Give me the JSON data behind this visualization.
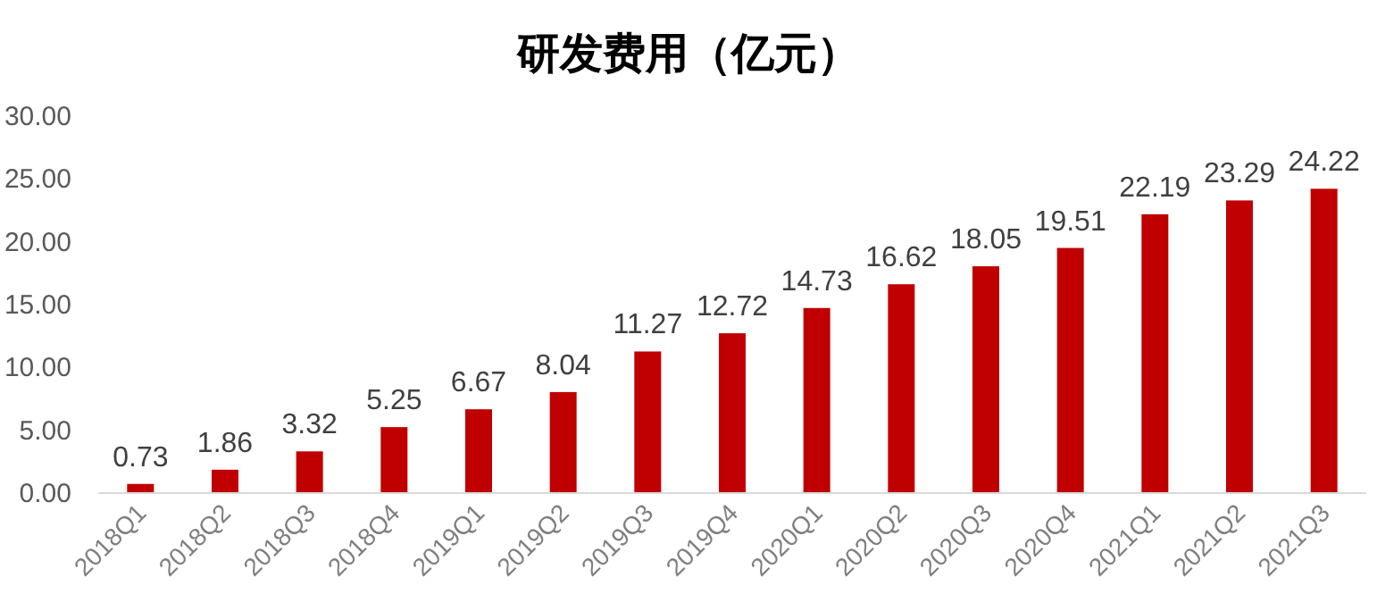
{
  "chart_data": {
    "type": "bar",
    "title": "研发费用（亿元）",
    "categories": [
      "2018Q1",
      "2018Q2",
      "2018Q3",
      "2018Q4",
      "2019Q1",
      "2019Q2",
      "2019Q3",
      "2019Q4",
      "2020Q1",
      "2020Q2",
      "2020Q3",
      "2020Q4",
      "2021Q1",
      "2021Q2",
      "2021Q3"
    ],
    "values": [
      0.73,
      1.86,
      3.32,
      5.25,
      6.67,
      8.04,
      11.27,
      12.72,
      14.73,
      16.62,
      18.05,
      19.51,
      22.19,
      23.29,
      24.22
    ],
    "color": "#c00000",
    "ylim": [
      0,
      30
    ],
    "yticks": [
      {
        "value": 0,
        "label": "0.00"
      },
      {
        "value": 5,
        "label": "5.00"
      },
      {
        "value": 10,
        "label": "10.00"
      },
      {
        "value": 15,
        "label": "15.00"
      },
      {
        "value": 20,
        "label": "20.00"
      },
      {
        "value": 25,
        "label": "25.00"
      },
      {
        "value": 30,
        "label": "30.00"
      }
    ],
    "data_labels": true,
    "grid": false
  }
}
